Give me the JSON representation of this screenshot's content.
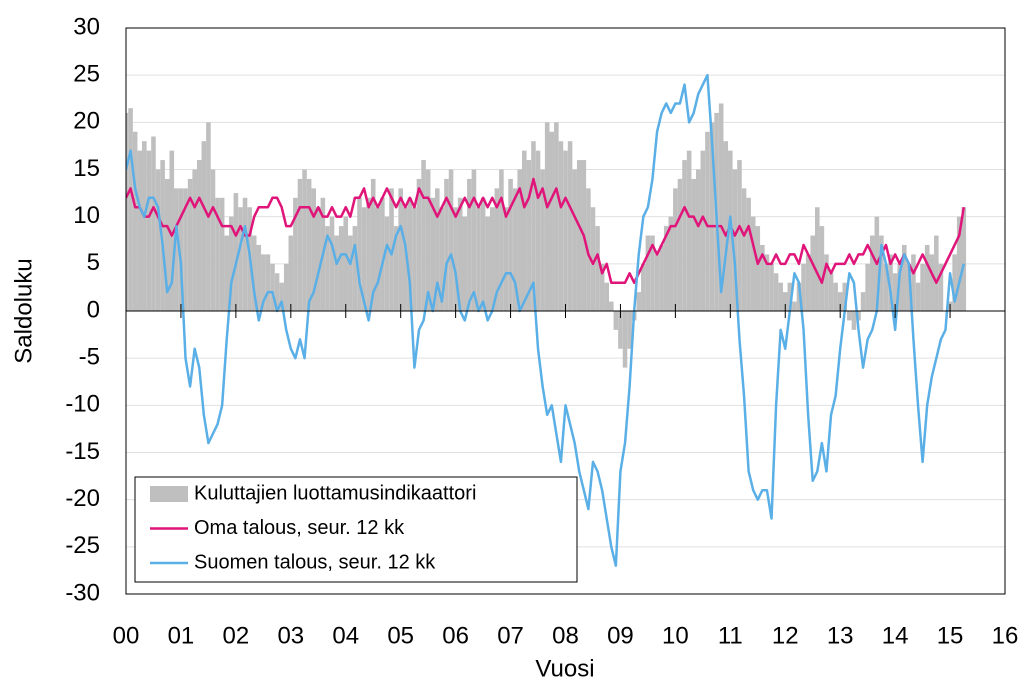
{
  "chart_data": {
    "type": "bar_line",
    "x_label": "Vuosi",
    "y_label": "Saldoluku",
    "x": [
      0,
      1,
      2,
      3,
      4,
      5,
      6,
      7,
      8,
      9,
      10,
      11,
      12,
      13,
      14,
      15,
      16,
      17,
      18,
      19,
      20,
      21,
      22,
      23,
      24,
      25,
      26,
      27,
      28,
      29,
      30,
      31,
      32,
      33,
      34,
      35,
      36,
      37,
      38,
      39,
      40,
      41,
      42,
      43,
      44,
      45,
      46,
      47,
      48,
      49,
      50,
      51,
      52,
      53,
      54,
      55,
      56,
      57,
      58,
      59,
      60,
      61,
      62,
      63,
      64,
      65,
      66,
      67,
      68,
      69,
      70,
      71,
      72,
      73,
      74,
      75,
      76,
      77,
      78,
      79,
      80,
      81,
      82,
      83,
      84,
      85,
      86,
      87,
      88,
      89,
      90,
      91,
      92,
      93,
      94,
      95,
      96,
      97,
      98,
      99,
      100,
      101,
      102,
      103,
      104,
      105,
      106,
      107,
      108,
      109,
      110,
      111,
      112,
      113,
      114,
      115,
      116,
      117,
      118,
      119,
      120,
      121,
      122,
      123,
      124,
      125,
      126,
      127,
      128,
      129,
      130,
      131,
      132,
      133,
      134,
      135,
      136,
      137,
      138,
      139,
      140,
      141,
      142,
      143,
      144,
      145,
      146,
      147,
      148,
      149,
      150,
      151,
      152,
      153,
      154,
      155,
      156,
      157,
      158,
      159,
      160,
      161,
      162,
      163,
      164,
      165,
      166,
      167,
      168,
      169,
      170,
      171,
      172,
      173,
      174,
      175,
      176,
      177,
      178,
      179,
      180,
      181,
      182,
      183
    ],
    "xlim": [
      0,
      192
    ],
    "xticks": [
      {
        "value": 0,
        "label": "00"
      },
      {
        "value": 12,
        "label": "01"
      },
      {
        "value": 24,
        "label": "02"
      },
      {
        "value": 36,
        "label": "03"
      },
      {
        "value": 48,
        "label": "04"
      },
      {
        "value": 60,
        "label": "05"
      },
      {
        "value": 72,
        "label": "06"
      },
      {
        "value": 84,
        "label": "07"
      },
      {
        "value": 96,
        "label": "08"
      },
      {
        "value": 108,
        "label": "09"
      },
      {
        "value": 120,
        "label": "10"
      },
      {
        "value": 132,
        "label": "11"
      },
      {
        "value": 144,
        "label": "12"
      },
      {
        "value": 156,
        "label": "13"
      },
      {
        "value": 168,
        "label": "14"
      },
      {
        "value": 180,
        "label": "15"
      },
      {
        "value": 192,
        "label": "16"
      }
    ],
    "ylim": [
      -30,
      30
    ],
    "yticks": [
      -30,
      -25,
      -20,
      -15,
      -10,
      -5,
      0,
      5,
      10,
      15,
      20,
      25,
      30
    ],
    "grid": true,
    "legend": "lower left",
    "series": [
      {
        "name": "Kuluttajien luottamusindikaattori",
        "kind": "bar",
        "color": "#bfbfbf",
        "values": [
          21,
          21.5,
          19,
          17,
          18,
          17,
          18.5,
          15,
          16,
          14,
          17,
          13,
          13,
          13,
          14,
          15,
          16,
          18,
          20,
          15,
          12,
          12,
          8,
          10,
          12.5,
          11,
          12,
          11,
          8,
          7,
          6,
          6,
          5,
          4,
          3,
          5,
          8,
          12,
          14,
          15,
          14,
          13,
          11,
          12,
          9,
          10,
          8,
          9,
          10,
          8,
          9,
          12,
          11,
          12,
          14,
          11,
          12,
          10,
          13,
          9,
          13,
          11,
          12,
          11,
          14,
          16,
          15,
          12,
          13,
          11,
          14,
          15,
          11,
          12,
          10,
          14,
          15,
          11,
          12,
          10,
          11,
          13,
          15,
          11,
          14,
          13,
          15,
          17,
          16,
          18,
          17,
          15,
          20,
          19,
          20,
          18,
          17,
          18,
          15,
          16,
          16,
          13,
          11,
          9,
          5,
          3,
          1,
          -2,
          -4,
          -6,
          -4,
          -1,
          2,
          5,
          8,
          8,
          6,
          7,
          9,
          10,
          13,
          14,
          16,
          17,
          14,
          15,
          17,
          19,
          20,
          21,
          22,
          18,
          17,
          15,
          16,
          13,
          12,
          10,
          9,
          7,
          6,
          5,
          4,
          3,
          2,
          3,
          1,
          3,
          5,
          6,
          8,
          11,
          9,
          6,
          4,
          3,
          2,
          3,
          -1,
          -2,
          -1,
          2,
          5,
          8,
          10,
          8,
          5,
          6,
          4,
          5,
          7,
          5,
          6,
          3,
          5,
          7,
          6,
          8,
          5,
          0,
          1,
          6,
          10,
          11
        ]
      },
      {
        "name": "Oma talous, seur. 12 kk",
        "kind": "line",
        "color": "#e0157a",
        "values": [
          12,
          13,
          11,
          11,
          10,
          10,
          11,
          10,
          9,
          9,
          8,
          9,
          10,
          11,
          12,
          11,
          12,
          11,
          10,
          11,
          10,
          9,
          9,
          9,
          8,
          9,
          8,
          8,
          10,
          11,
          11,
          11,
          12,
          12,
          11,
          9,
          9,
          10,
          11,
          11,
          11,
          10,
          11,
          10,
          10,
          11,
          10,
          10,
          11,
          10,
          12,
          12,
          13,
          11,
          12,
          11,
          12,
          13,
          12,
          11,
          12,
          11,
          12,
          11,
          13,
          12,
          12,
          11,
          10,
          11,
          12,
          11,
          10,
          11,
          12,
          11,
          12,
          11,
          12,
          11,
          12,
          11,
          12,
          10,
          11,
          12,
          13,
          11,
          12,
          14,
          12,
          13,
          11,
          12,
          13,
          11,
          12,
          11,
          10,
          9,
          8,
          6,
          5,
          6,
          4,
          5,
          3,
          3,
          3,
          3,
          4,
          3,
          4,
          5,
          6,
          7,
          6,
          7,
          8,
          9,
          9,
          10,
          11,
          10,
          10,
          9,
          10,
          9,
          9,
          9,
          9,
          8,
          9,
          8,
          9,
          8,
          9,
          7,
          5,
          6,
          5,
          5,
          6,
          5,
          5,
          6,
          6,
          5,
          7,
          6,
          5,
          4,
          3,
          5,
          4,
          5,
          5,
          5,
          6,
          5,
          6,
          6,
          7,
          6,
          5,
          6,
          7,
          5,
          6,
          5,
          6,
          5,
          4,
          5,
          6,
          5,
          4,
          3,
          4,
          5,
          6,
          7,
          8,
          11
        ]
      },
      {
        "name": "Suomen talous, seur. 12 kk",
        "kind": "line",
        "color": "#5aafe6",
        "values": [
          15,
          17,
          13,
          11,
          10,
          12,
          12,
          11,
          7,
          2,
          3,
          9,
          5,
          -5,
          -8,
          -4,
          -6,
          -11,
          -14,
          -13,
          -12,
          -10,
          -3,
          3,
          5,
          7,
          9,
          6,
          2,
          -1,
          1,
          2,
          2,
          0,
          1,
          -2,
          -4,
          -5,
          -3,
          -5,
          1,
          2,
          4,
          6,
          8,
          7,
          5,
          6,
          6,
          5,
          7,
          3,
          1,
          -1,
          2,
          3,
          5,
          7,
          6,
          8,
          9,
          7,
          3,
          -6,
          -2,
          -1,
          2,
          0,
          3,
          1,
          5,
          6,
          4,
          0,
          -1,
          1,
          2,
          0,
          1,
          -1,
          0,
          2,
          3,
          4,
          4,
          3,
          0,
          1,
          2,
          3,
          -4,
          -8,
          -11,
          -10,
          -13,
          -16,
          -10,
          -12,
          -14,
          -17,
          -19,
          -21,
          -16,
          -17,
          -19,
          -22,
          -25,
          -27,
          -17,
          -14,
          -8,
          0,
          6,
          10,
          11,
          14,
          19,
          21,
          22,
          21,
          22,
          22,
          24,
          20,
          21,
          23,
          24,
          25,
          18,
          10,
          2,
          6,
          10,
          5,
          -3,
          -9,
          -17,
          -19,
          -20,
          -19,
          -19,
          -22,
          -10,
          -2,
          -4,
          0,
          4,
          3,
          -2,
          -11,
          -18,
          -17,
          -14,
          -17,
          -11,
          -9,
          -4,
          0,
          4,
          3,
          -2,
          -6,
          -3,
          -2,
          0,
          7,
          5,
          2,
          -2,
          4,
          6,
          5,
          -3,
          -10,
          -16,
          -10,
          -7,
          -5,
          -3,
          -2,
          4,
          1,
          3,
          5
        ]
      }
    ]
  }
}
